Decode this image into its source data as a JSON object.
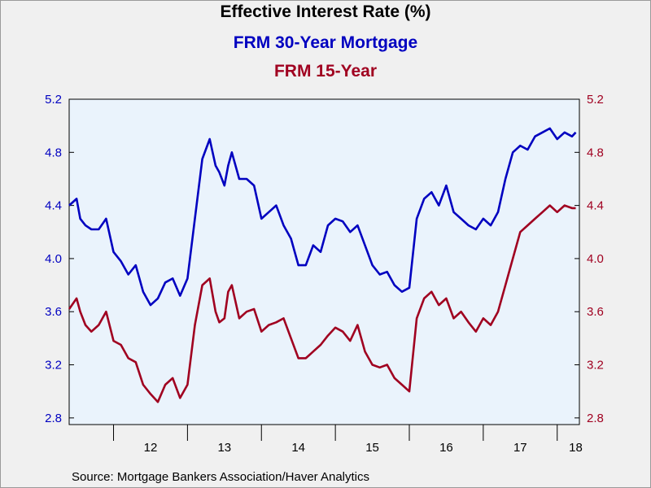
{
  "chart_data": {
    "type": "line",
    "title": "Effective Interest Rate (%)",
    "x_tick_labels": [
      "12",
      "13",
      "14",
      "15",
      "16",
      "17",
      "18"
    ],
    "y_ticks": [
      2.8,
      3.2,
      3.6,
      4.0,
      4.4,
      4.8,
      5.2
    ],
    "y_tick_labels": [
      "2.8",
      "3.2",
      "3.6",
      "4.0",
      "4.4",
      "4.8",
      "5.2"
    ],
    "ylim": [
      2.75,
      5.2
    ],
    "xlim": [
      2011.4,
      2018.3
    ],
    "grid": false,
    "dual_axis": true,
    "colors": {
      "plot_bg": "#eaf3fc",
      "series1": "#0000c0",
      "series2": "#a00020"
    },
    "series": [
      {
        "name": "FRM 30-Year Mortgage",
        "color": "#0000c0",
        "x": [
          2011.4,
          2011.5,
          2011.55,
          2011.62,
          2011.7,
          2011.8,
          2011.9,
          2012.0,
          2012.1,
          2012.2,
          2012.3,
          2012.4,
          2012.5,
          2012.6,
          2012.7,
          2012.8,
          2012.9,
          2013.0,
          2013.1,
          2013.2,
          2013.3,
          2013.38,
          2013.43,
          2013.5,
          2013.55,
          2013.6,
          2013.7,
          2013.8,
          2013.9,
          2014.0,
          2014.1,
          2014.2,
          2014.3,
          2014.4,
          2014.5,
          2014.6,
          2014.7,
          2014.8,
          2014.9,
          2015.0,
          2015.1,
          2015.2,
          2015.3,
          2015.4,
          2015.5,
          2015.6,
          2015.7,
          2015.8,
          2015.9,
          2016.0,
          2016.1,
          2016.2,
          2016.3,
          2016.4,
          2016.5,
          2016.6,
          2016.7,
          2016.8,
          2016.9,
          2017.0,
          2017.1,
          2017.2,
          2017.3,
          2017.4,
          2017.5,
          2017.6,
          2017.7,
          2017.8,
          2017.9,
          2018.0,
          2018.1,
          2018.2,
          2018.25
        ],
        "values": [
          4.4,
          4.45,
          4.3,
          4.25,
          4.22,
          4.22,
          4.3,
          4.05,
          3.98,
          3.88,
          3.95,
          3.75,
          3.65,
          3.7,
          3.82,
          3.85,
          3.72,
          3.85,
          4.3,
          4.75,
          4.9,
          4.7,
          4.65,
          4.55,
          4.7,
          4.8,
          4.6,
          4.6,
          4.55,
          4.3,
          4.35,
          4.4,
          4.25,
          4.15,
          3.95,
          3.95,
          4.1,
          4.05,
          4.25,
          4.3,
          4.28,
          4.2,
          4.25,
          4.1,
          3.95,
          3.88,
          3.9,
          3.8,
          3.75,
          3.78,
          4.3,
          4.45,
          4.5,
          4.4,
          4.55,
          4.35,
          4.3,
          4.25,
          4.22,
          4.3,
          4.25,
          4.35,
          4.6,
          4.8,
          4.85,
          4.82,
          4.92,
          4.95,
          4.98,
          4.9,
          4.95,
          4.92,
          4.95
        ]
      },
      {
        "name": "FRM 15-Year",
        "color": "#a00020",
        "x": [
          2011.4,
          2011.5,
          2011.55,
          2011.62,
          2011.7,
          2011.8,
          2011.9,
          2012.0,
          2012.1,
          2012.2,
          2012.3,
          2012.4,
          2012.5,
          2012.6,
          2012.7,
          2012.8,
          2012.9,
          2013.0,
          2013.1,
          2013.2,
          2013.3,
          2013.38,
          2013.43,
          2013.5,
          2013.55,
          2013.6,
          2013.7,
          2013.8,
          2013.9,
          2014.0,
          2014.1,
          2014.2,
          2014.3,
          2014.4,
          2014.5,
          2014.6,
          2014.7,
          2014.8,
          2014.9,
          2015.0,
          2015.1,
          2015.2,
          2015.3,
          2015.4,
          2015.5,
          2015.6,
          2015.7,
          2015.8,
          2015.9,
          2016.0,
          2016.1,
          2016.2,
          2016.3,
          2016.4,
          2016.5,
          2016.6,
          2016.7,
          2016.8,
          2016.9,
          2017.0,
          2017.1,
          2017.2,
          2017.3,
          2017.4,
          2017.5,
          2017.6,
          2017.7,
          2017.8,
          2017.9,
          2018.0,
          2018.1,
          2018.2,
          2018.25
        ],
        "values": [
          3.62,
          3.7,
          3.6,
          3.5,
          3.45,
          3.5,
          3.6,
          3.38,
          3.35,
          3.25,
          3.22,
          3.05,
          2.98,
          2.92,
          3.05,
          3.1,
          2.95,
          3.05,
          3.5,
          3.8,
          3.85,
          3.6,
          3.52,
          3.55,
          3.75,
          3.8,
          3.55,
          3.6,
          3.62,
          3.45,
          3.5,
          3.52,
          3.55,
          3.4,
          3.25,
          3.25,
          3.3,
          3.35,
          3.42,
          3.48,
          3.45,
          3.38,
          3.5,
          3.3,
          3.2,
          3.18,
          3.2,
          3.1,
          3.05,
          3.0,
          3.55,
          3.7,
          3.75,
          3.65,
          3.7,
          3.55,
          3.6,
          3.52,
          3.45,
          3.55,
          3.5,
          3.6,
          3.8,
          4.0,
          4.2,
          4.25,
          4.3,
          4.35,
          4.4,
          4.35,
          4.4,
          4.38,
          4.38
        ]
      }
    ]
  },
  "source": "Source:  Mortgage Bankers Association/Haver Analytics"
}
